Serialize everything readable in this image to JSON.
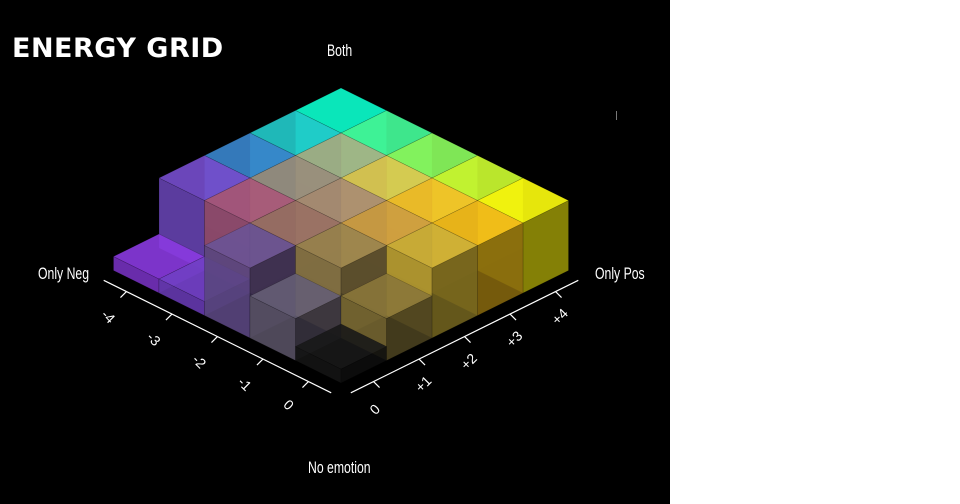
{
  "title": "ENERGY GRID",
  "corner_labels": {
    "top": "Both",
    "left": "Only Neg",
    "right": "Only Pos",
    "bottom": "No emotion"
  },
  "chart_data": {
    "type": "3d-bar-grid",
    "title": "ENERGY GRID",
    "neg_axis": {
      "ticks": [
        "0",
        "-1",
        "-2",
        "-3",
        "-4"
      ]
    },
    "pos_axis": {
      "ticks": [
        "0",
        "+1",
        "+2",
        "+3",
        "+4"
      ]
    },
    "corner_labels": [
      "Both",
      "Only Neg",
      "Only Pos",
      "No emotion"
    ],
    "grid": [
      [
        {
          "neg": 0,
          "pos": 0,
          "height": 0.5,
          "color": "#151515"
        },
        {
          "neg": 0,
          "pos": 1,
          "height": 1.5,
          "color": "#7a6a34"
        },
        {
          "neg": 0,
          "pos": 2,
          "height": 2.5,
          "color": "#b9a032"
        },
        {
          "neg": 0,
          "pos": 3,
          "height": 2.5,
          "color": "#d8a616"
        },
        {
          "neg": 0,
          "pos": 4,
          "height": 2.5,
          "color": "#f4ec0c"
        }
      ],
      [
        {
          "neg": 1,
          "pos": 0,
          "height": 1.5,
          "color": "#5a5468"
        },
        {
          "neg": 1,
          "pos": 1,
          "height": 2.5,
          "color": "#8b7847"
        },
        {
          "neg": 1,
          "pos": 2,
          "height": 2.5,
          "color": "#b98f3c"
        },
        {
          "neg": 1,
          "pos": 3,
          "height": 2.5,
          "color": "#dcad24"
        },
        {
          "neg": 1,
          "pos": 4,
          "height": 2.5,
          "color": "#b8e82c"
        }
      ],
      [
        {
          "neg": 2,
          "pos": 0,
          "height": 2.5,
          "color": "#5f4a86"
        },
        {
          "neg": 2,
          "pos": 1,
          "height": 2.5,
          "color": "#8a665a"
        },
        {
          "neg": 2,
          "pos": 2,
          "height": 2.5,
          "color": "#9a8068"
        },
        {
          "neg": 2,
          "pos": 3,
          "height": 2.5,
          "color": "#c7b448"
        },
        {
          "neg": 2,
          "pos": 4,
          "height": 2.5,
          "color": "#7ee455"
        }
      ],
      [
        {
          "neg": 3,
          "pos": 0,
          "height": 0.5,
          "color": "#6a3cb8"
        },
        {
          "neg": 3,
          "pos": 1,
          "height": 2.5,
          "color": "#9a506e"
        },
        {
          "neg": 3,
          "pos": 2,
          "height": 2.5,
          "color": "#8a8070"
        },
        {
          "neg": 3,
          "pos": 3,
          "height": 2.5,
          "color": "#98a078"
        },
        {
          "neg": 3,
          "pos": 4,
          "height": 2.5,
          "color": "#3ee88a"
        }
      ],
      [
        {
          "neg": 4,
          "pos": 0,
          "height": 0.5,
          "color": "#7a34c8"
        },
        {
          "neg": 4,
          "pos": 1,
          "height": 2.5,
          "color": "#6a46b8"
        },
        {
          "neg": 4,
          "pos": 2,
          "height": 2.5,
          "color": "#3478b8"
        },
        {
          "neg": 4,
          "pos": 3,
          "height": 2.5,
          "color": "#1eb6b6"
        },
        {
          "neg": 4,
          "pos": 4,
          "height": 2.5,
          "color": "#0ae6b8"
        }
      ]
    ]
  }
}
